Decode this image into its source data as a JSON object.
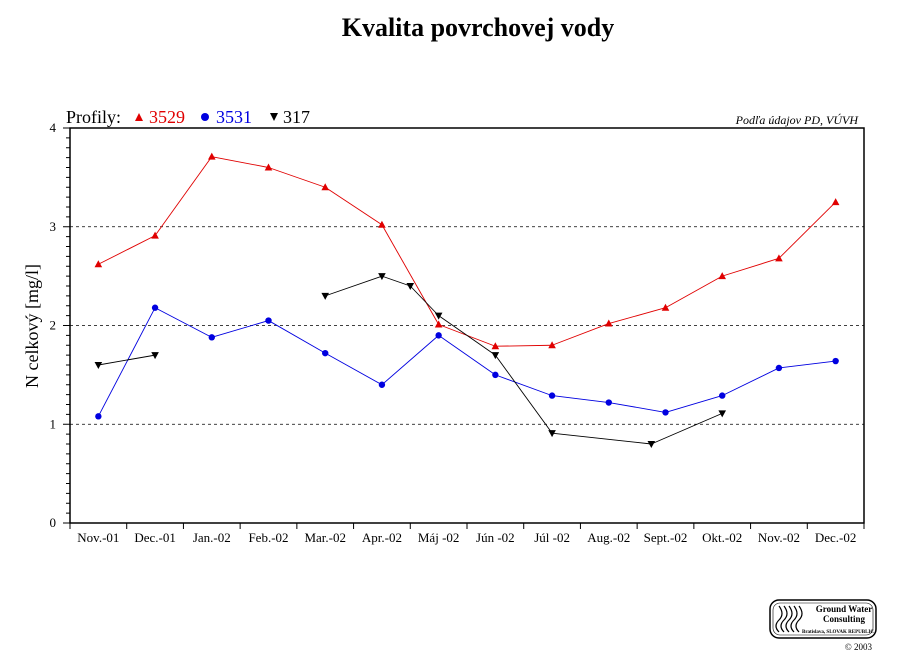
{
  "chart_data": {
    "type": "line",
    "title": "Kvalita povrchovej vody",
    "ylabel": "N celkový [mg/l]",
    "xlabel": "",
    "ylim": [
      0,
      4
    ],
    "yticks": [
      "0",
      "1",
      "2",
      "3",
      "4"
    ],
    "grid": "horizontal dashed at 1, 2, 3",
    "categories": [
      "Nov.-01",
      "Dec.-01",
      "Jan.-02",
      "Feb.-02",
      "Mar.-02",
      "Apr.-02",
      "Máj -02",
      "Jún -02",
      "Júl -02",
      "Aug.-02",
      "Sept.-02",
      "Okt.-02",
      "Nov.-02",
      "Dec.-02"
    ],
    "legend_prefix": "Profily:",
    "legend_placement": "top-left",
    "source_note": "Podľa údajov PD, VÚVH",
    "series": [
      {
        "name": "3529",
        "color": "#e00000",
        "marker": "triangle-up",
        "values": [
          2.62,
          2.91,
          3.71,
          3.6,
          3.4,
          3.02,
          2.01,
          1.79,
          1.8,
          2.02,
          2.18,
          2.5,
          2.68,
          3.25
        ]
      },
      {
        "name": "3531",
        "color": "#0000e0",
        "marker": "circle",
        "values": [
          1.08,
          2.18,
          1.88,
          2.05,
          1.72,
          1.4,
          1.9,
          1.5,
          1.29,
          1.22,
          1.12,
          1.29,
          1.57,
          1.64
        ]
      },
      {
        "name": "317",
        "color": "#000000",
        "marker": "triangle-down",
        "values": [
          1.6,
          1.7,
          null,
          null,
          2.3,
          2.5,
          2.4,
          2.1,
          1.7,
          0.91,
          0.8,
          1.11,
          null,
          null
        ],
        "x_positions": [
          0,
          1,
          null,
          null,
          4,
          5,
          5.5,
          6,
          7,
          8,
          9.75,
          11,
          null,
          null
        ]
      }
    ]
  },
  "logo": {
    "line1": "Ground Water",
    "line2": "Consulting",
    "line3": "Bratislava, SLOVAK REPUBLIC",
    "copyright": "© 2003"
  }
}
